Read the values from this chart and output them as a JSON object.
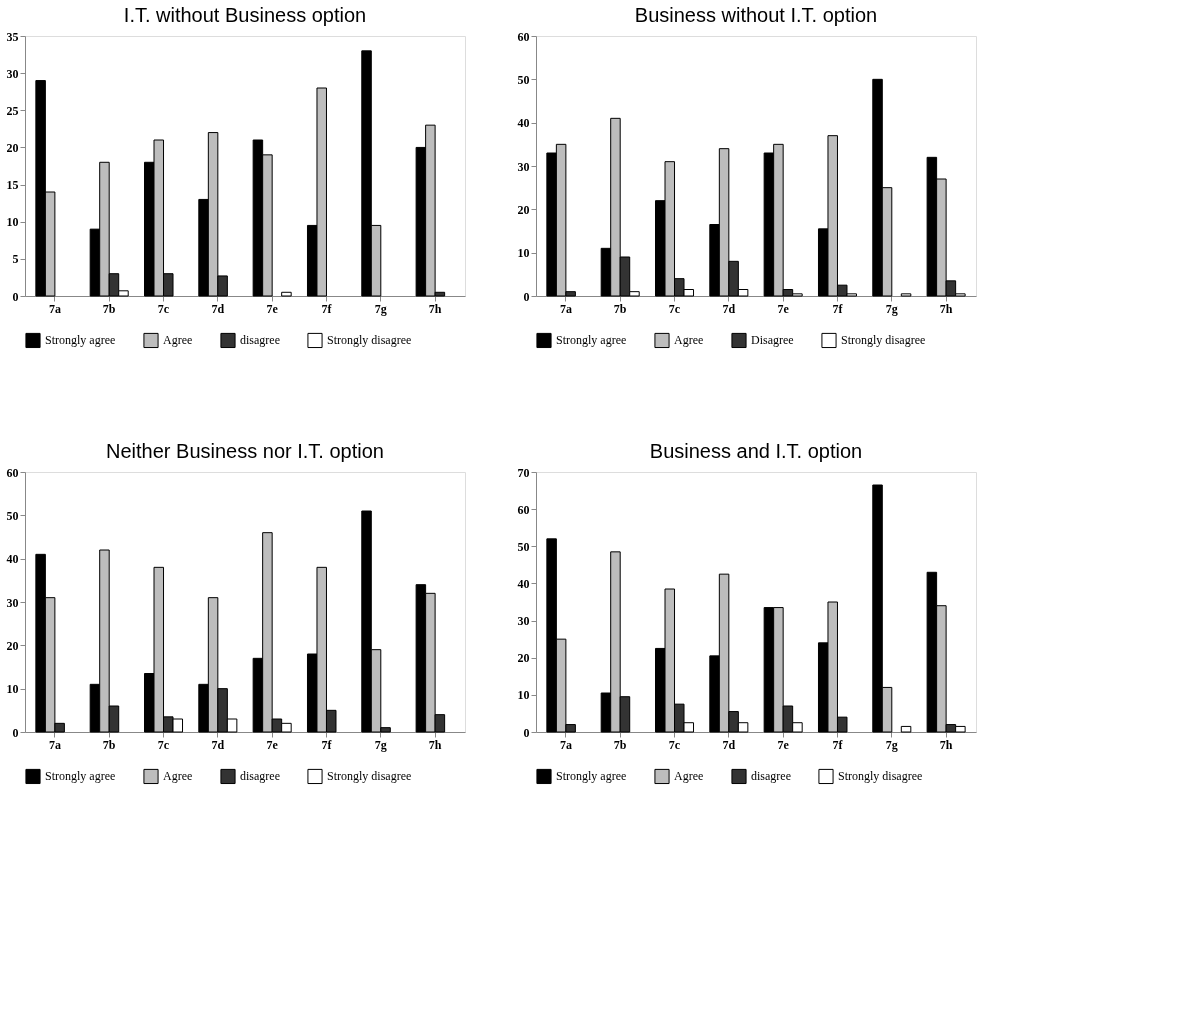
{
  "chart_data": [
    {
      "type": "bar",
      "title": "I.T. without Business option",
      "categories": [
        "7a",
        "7b",
        "7c",
        "7d",
        "7e",
        "7f",
        "7g",
        "7h"
      ],
      "ylim": [
        0,
        35
      ],
      "yticks": [
        0,
        5,
        10,
        15,
        20,
        25,
        30,
        35
      ],
      "grid": false,
      "legend": "bottom",
      "series": [
        {
          "name": "Strongly agree",
          "color": "#000000",
          "values": [
            29,
            9,
            18,
            13,
            21,
            9.5,
            33,
            20
          ]
        },
        {
          "name": "Agree",
          "color": "#bdbdbd",
          "values": [
            14,
            18,
            21,
            22,
            19,
            28,
            9.5,
            23
          ]
        },
        {
          "name": "disagree",
          "color": "#333333",
          "values": [
            null,
            3,
            3,
            2.7,
            null,
            null,
            null,
            0.5
          ]
        },
        {
          "name": "Strongly disagree",
          "color": "#ffffff",
          "values": [
            null,
            0.7,
            null,
            null,
            0.5,
            null,
            null,
            null
          ]
        }
      ]
    },
    {
      "type": "bar",
      "title": "Business without I.T. option",
      "categories": [
        "7a",
        "7b",
        "7c",
        "7d",
        "7e",
        "7f",
        "7g",
        "7h"
      ],
      "ylim": [
        0,
        60
      ],
      "yticks": [
        0,
        10,
        20,
        30,
        40,
        50,
        60
      ],
      "grid": false,
      "legend": "bottom",
      "series": [
        {
          "name": "Strongly agree",
          "color": "#000000",
          "values": [
            33,
            11,
            22,
            16.5,
            33,
            15.5,
            50,
            32
          ]
        },
        {
          "name": "Agree",
          "color": "#bdbdbd",
          "values": [
            35,
            41,
            31,
            34,
            35,
            37,
            25,
            27
          ]
        },
        {
          "name": "Disagree",
          "color": "#333333",
          "values": [
            1,
            9,
            4,
            8,
            1.5,
            2.5,
            null,
            3.5
          ]
        },
        {
          "name": "Strongly disagree",
          "color": "#ffffff",
          "values": [
            null,
            1,
            1.5,
            1.5,
            0.5,
            0.5,
            0.5,
            0.5
          ]
        }
      ]
    },
    {
      "type": "bar",
      "title": "Neither Business nor I.T. option",
      "categories": [
        "7a",
        "7b",
        "7c",
        "7d",
        "7e",
        "7f",
        "7g",
        "7h"
      ],
      "ylim": [
        0,
        60
      ],
      "yticks": [
        0,
        10,
        20,
        30,
        40,
        50,
        60
      ],
      "grid": false,
      "legend": "bottom",
      "series": [
        {
          "name": "Strongly agree",
          "color": "#000000",
          "values": [
            41,
            11,
            13.5,
            11,
            17,
            18,
            51,
            34
          ]
        },
        {
          "name": "Agree",
          "color": "#bdbdbd",
          "values": [
            31,
            42,
            38,
            31,
            46,
            38,
            19,
            32
          ]
        },
        {
          "name": "disagree",
          "color": "#333333",
          "values": [
            2,
            6,
            3.5,
            10,
            3,
            5,
            1,
            4
          ]
        },
        {
          "name": "Strongly disagree",
          "color": "#ffffff",
          "values": [
            null,
            null,
            3,
            3,
            2,
            null,
            null,
            null
          ]
        }
      ]
    },
    {
      "type": "bar",
      "title": "Business and I.T. option",
      "categories": [
        "7a",
        "7b",
        "7c",
        "7d",
        "7e",
        "7f",
        "7g",
        "7h"
      ],
      "ylim": [
        0,
        70
      ],
      "yticks": [
        0,
        10,
        20,
        30,
        40,
        50,
        60,
        70
      ],
      "grid": false,
      "legend": "bottom",
      "series": [
        {
          "name": "Strongly agree",
          "color": "#000000",
          "values": [
            52,
            10.5,
            22.5,
            20.5,
            33.5,
            24,
            66.5,
            43
          ]
        },
        {
          "name": "Agree",
          "color": "#bdbdbd",
          "values": [
            25,
            48.5,
            38.5,
            42.5,
            33.5,
            35,
            12,
            34
          ]
        },
        {
          "name": "disagree",
          "color": "#333333",
          "values": [
            2,
            9.5,
            7.5,
            5.5,
            7,
            4,
            null,
            2
          ]
        },
        {
          "name": "Strongly disagree",
          "color": "#ffffff",
          "values": [
            null,
            null,
            2.5,
            2.5,
            2.5,
            null,
            1.5,
            1.5
          ]
        }
      ]
    }
  ]
}
